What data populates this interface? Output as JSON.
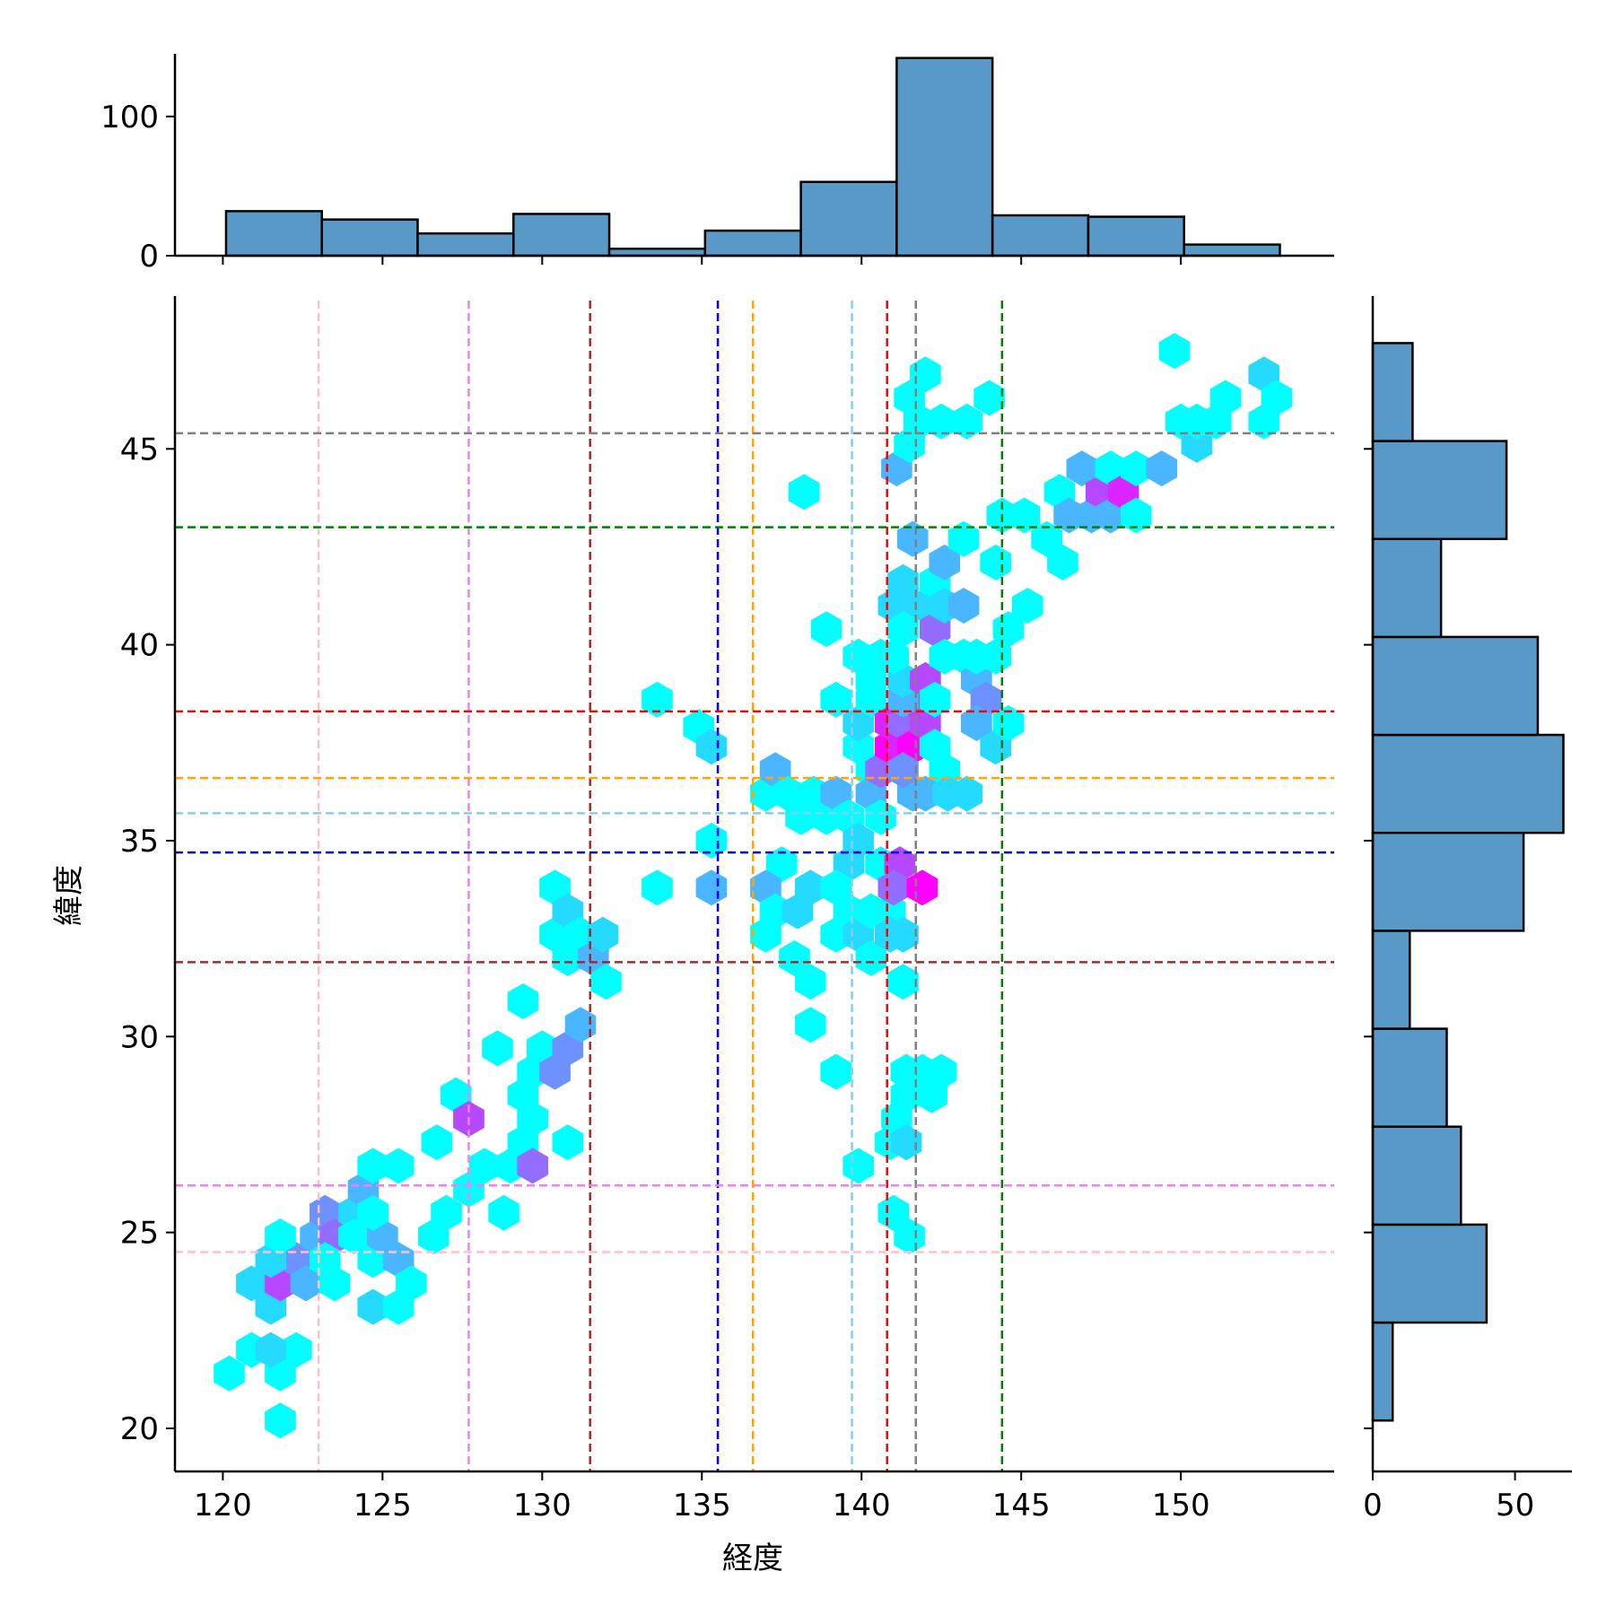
{
  "chart_data": {
    "type": "hexbin",
    "xlabel": "経度",
    "ylabel": "緯度",
    "xlim": [
      118.5,
      154.8
    ],
    "ylim": [
      18.9,
      48.9
    ],
    "xticks": [
      120,
      125,
      130,
      135,
      140,
      145,
      150
    ],
    "yticks": [
      20,
      25,
      30,
      35,
      40,
      45
    ],
    "colormap": [
      "#00ffff",
      "#ff00ff"
    ],
    "hexbins": [
      {
        "x": 120.2,
        "y": 21.4,
        "c": 1
      },
      {
        "x": 120.9,
        "y": 22.0,
        "c": 1
      },
      {
        "x": 121.8,
        "y": 21.4,
        "c": 1
      },
      {
        "x": 122.3,
        "y": 22.0,
        "c": 1
      },
      {
        "x": 121.5,
        "y": 22.0,
        "c": 2
      },
      {
        "x": 121.8,
        "y": 20.2,
        "c": 1
      },
      {
        "x": 120.9,
        "y": 23.7,
        "c": 2
      },
      {
        "x": 121.5,
        "y": 23.1,
        "c": 2
      },
      {
        "x": 121.8,
        "y": 23.7,
        "c": 6
      },
      {
        "x": 122.3,
        "y": 24.3,
        "c": 4
      },
      {
        "x": 121.5,
        "y": 24.3,
        "c": 2
      },
      {
        "x": 121.8,
        "y": 24.9,
        "c": 1
      },
      {
        "x": 122.6,
        "y": 23.7,
        "c": 3
      },
      {
        "x": 122.9,
        "y": 24.9,
        "c": 3
      },
      {
        "x": 123.2,
        "y": 25.5,
        "c": 4
      },
      {
        "x": 123.5,
        "y": 24.9,
        "c": 5
      },
      {
        "x": 123.5,
        "y": 23.7,
        "c": 1
      },
      {
        "x": 123.2,
        "y": 24.3,
        "c": 1
      },
      {
        "x": 124.1,
        "y": 25.5,
        "c": 2
      },
      {
        "x": 124.4,
        "y": 26.1,
        "c": 3
      },
      {
        "x": 124.1,
        "y": 24.9,
        "c": 1
      },
      {
        "x": 124.7,
        "y": 24.3,
        "c": 1
      },
      {
        "x": 125.0,
        "y": 24.9,
        "c": 3
      },
      {
        "x": 125.5,
        "y": 24.3,
        "c": 3
      },
      {
        "x": 124.7,
        "y": 25.5,
        "c": 1
      },
      {
        "x": 124.7,
        "y": 26.7,
        "c": 1
      },
      {
        "x": 125.5,
        "y": 26.7,
        "c": 1
      },
      {
        "x": 124.7,
        "y": 23.1,
        "c": 2
      },
      {
        "x": 125.5,
        "y": 23.1,
        "c": 1
      },
      {
        "x": 125.9,
        "y": 23.7,
        "c": 1
      },
      {
        "x": 126.6,
        "y": 24.9,
        "c": 1
      },
      {
        "x": 127.0,
        "y": 25.5,
        "c": 1
      },
      {
        "x": 126.7,
        "y": 27.3,
        "c": 1
      },
      {
        "x": 127.7,
        "y": 26.1,
        "c": 1
      },
      {
        "x": 127.3,
        "y": 28.5,
        "c": 1
      },
      {
        "x": 127.7,
        "y": 27.9,
        "c": 6
      },
      {
        "x": 128.2,
        "y": 26.7,
        "c": 1
      },
      {
        "x": 128.6,
        "y": 29.7,
        "c": 1
      },
      {
        "x": 129.0,
        "y": 26.7,
        "c": 1
      },
      {
        "x": 128.8,
        "y": 25.5,
        "c": 1
      },
      {
        "x": 129.4,
        "y": 27.3,
        "c": 1
      },
      {
        "x": 129.4,
        "y": 28.5,
        "c": 1
      },
      {
        "x": 129.7,
        "y": 26.7,
        "c": 5
      },
      {
        "x": 129.7,
        "y": 27.9,
        "c": 1
      },
      {
        "x": 129.7,
        "y": 29.1,
        "c": 1
      },
      {
        "x": 130.0,
        "y": 29.7,
        "c": 1
      },
      {
        "x": 129.4,
        "y": 30.9,
        "c": 1
      },
      {
        "x": 130.4,
        "y": 29.1,
        "c": 4
      },
      {
        "x": 130.8,
        "y": 29.7,
        "c": 4
      },
      {
        "x": 130.8,
        "y": 27.3,
        "c": 1
      },
      {
        "x": 131.2,
        "y": 30.3,
        "c": 3
      },
      {
        "x": 130.4,
        "y": 32.6,
        "c": 1
      },
      {
        "x": 130.4,
        "y": 33.8,
        "c": 1
      },
      {
        "x": 130.8,
        "y": 33.2,
        "c": 2
      },
      {
        "x": 130.8,
        "y": 32.0,
        "c": 1
      },
      {
        "x": 131.2,
        "y": 32.6,
        "c": 1
      },
      {
        "x": 131.6,
        "y": 32.0,
        "c": 3
      },
      {
        "x": 131.9,
        "y": 32.6,
        "c": 2
      },
      {
        "x": 132.0,
        "y": 31.4,
        "c": 1
      },
      {
        "x": 133.6,
        "y": 33.8,
        "c": 1
      },
      {
        "x": 133.6,
        "y": 38.6,
        "c": 1
      },
      {
        "x": 134.9,
        "y": 37.9,
        "c": 1
      },
      {
        "x": 135.3,
        "y": 37.4,
        "c": 2
      },
      {
        "x": 135.3,
        "y": 35.0,
        "c": 1
      },
      {
        "x": 135.3,
        "y": 33.8,
        "c": 3
      },
      {
        "x": 137.0,
        "y": 36.2,
        "c": 1
      },
      {
        "x": 137.3,
        "y": 36.8,
        "c": 3
      },
      {
        "x": 137.7,
        "y": 36.2,
        "c": 1
      },
      {
        "x": 138.1,
        "y": 35.6,
        "c": 1
      },
      {
        "x": 138.5,
        "y": 36.2,
        "c": 1
      },
      {
        "x": 138.9,
        "y": 35.6,
        "c": 1
      },
      {
        "x": 137.5,
        "y": 34.4,
        "c": 1
      },
      {
        "x": 137.0,
        "y": 33.8,
        "c": 3
      },
      {
        "x": 137.3,
        "y": 33.2,
        "c": 1
      },
      {
        "x": 137.0,
        "y": 32.6,
        "c": 1
      },
      {
        "x": 138.0,
        "y": 33.2,
        "c": 2
      },
      {
        "x": 138.4,
        "y": 33.8,
        "c": 2
      },
      {
        "x": 137.9,
        "y": 32.0,
        "c": 1
      },
      {
        "x": 138.4,
        "y": 31.4,
        "c": 1
      },
      {
        "x": 138.4,
        "y": 30.3,
        "c": 1
      },
      {
        "x": 138.2,
        "y": 43.9,
        "c": 1
      },
      {
        "x": 138.9,
        "y": 40.4,
        "c": 1
      },
      {
        "x": 139.2,
        "y": 38.6,
        "c": 1
      },
      {
        "x": 139.2,
        "y": 36.2,
        "c": 3
      },
      {
        "x": 139.6,
        "y": 35.6,
        "c": 1
      },
      {
        "x": 139.6,
        "y": 34.4,
        "c": 2
      },
      {
        "x": 139.9,
        "y": 35.0,
        "c": 2
      },
      {
        "x": 139.2,
        "y": 33.8,
        "c": 1
      },
      {
        "x": 139.2,
        "y": 32.6,
        "c": 1
      },
      {
        "x": 139.6,
        "y": 33.2,
        "c": 1
      },
      {
        "x": 139.9,
        "y": 32.6,
        "c": 2
      },
      {
        "x": 140.3,
        "y": 33.2,
        "c": 1
      },
      {
        "x": 140.3,
        "y": 32.0,
        "c": 1
      },
      {
        "x": 139.2,
        "y": 29.1,
        "c": 1
      },
      {
        "x": 139.9,
        "y": 26.7,
        "c": 1
      },
      {
        "x": 139.9,
        "y": 37.4,
        "c": 1
      },
      {
        "x": 139.9,
        "y": 38.0,
        "c": 2
      },
      {
        "x": 140.3,
        "y": 38.6,
        "c": 1
      },
      {
        "x": 140.3,
        "y": 39.1,
        "c": 1
      },
      {
        "x": 139.9,
        "y": 39.7,
        "c": 1
      },
      {
        "x": 140.6,
        "y": 39.7,
        "c": 1
      },
      {
        "x": 140.3,
        "y": 36.8,
        "c": 1
      },
      {
        "x": 140.3,
        "y": 36.2,
        "c": 3
      },
      {
        "x": 140.6,
        "y": 35.6,
        "c": 1
      },
      {
        "x": 140.6,
        "y": 36.8,
        "c": 5
      },
      {
        "x": 140.9,
        "y": 37.4,
        "c": 8
      },
      {
        "x": 140.9,
        "y": 38.0,
        "c": 7
      },
      {
        "x": 141.3,
        "y": 37.4,
        "c": 7
      },
      {
        "x": 141.3,
        "y": 38.0,
        "c": 5
      },
      {
        "x": 141.6,
        "y": 38.6,
        "c": 7
      },
      {
        "x": 141.6,
        "y": 37.4,
        "c": 8
      },
      {
        "x": 142.0,
        "y": 38.0,
        "c": 6
      },
      {
        "x": 141.3,
        "y": 38.6,
        "c": 3
      },
      {
        "x": 141.3,
        "y": 39.1,
        "c": 2
      },
      {
        "x": 142.0,
        "y": 39.1,
        "c": 6
      },
      {
        "x": 142.3,
        "y": 38.6,
        "c": 1
      },
      {
        "x": 142.3,
        "y": 37.4,
        "c": 1
      },
      {
        "x": 142.6,
        "y": 36.8,
        "c": 1
      },
      {
        "x": 141.6,
        "y": 36.2,
        "c": 3
      },
      {
        "x": 141.3,
        "y": 36.8,
        "c": 4
      },
      {
        "x": 142.0,
        "y": 36.2,
        "c": 3
      },
      {
        "x": 142.7,
        "y": 36.2,
        "c": 2
      },
      {
        "x": 143.3,
        "y": 36.2,
        "c": 2
      },
      {
        "x": 140.6,
        "y": 34.4,
        "c": 1
      },
      {
        "x": 140.9,
        "y": 33.2,
        "c": 1
      },
      {
        "x": 140.9,
        "y": 32.6,
        "c": 2
      },
      {
        "x": 141.3,
        "y": 32.6,
        "c": 2
      },
      {
        "x": 141.3,
        "y": 31.4,
        "c": 1
      },
      {
        "x": 141.2,
        "y": 34.4,
        "c": 6
      },
      {
        "x": 141.0,
        "y": 33.8,
        "c": 5
      },
      {
        "x": 141.9,
        "y": 33.8,
        "c": 8
      },
      {
        "x": 141.0,
        "y": 39.7,
        "c": 1
      },
      {
        "x": 141.0,
        "y": 41.0,
        "c": 2
      },
      {
        "x": 141.3,
        "y": 41.6,
        "c": 2
      },
      {
        "x": 141.6,
        "y": 41.0,
        "c": 2
      },
      {
        "x": 141.3,
        "y": 40.4,
        "c": 1
      },
      {
        "x": 141.6,
        "y": 42.7,
        "c": 3
      },
      {
        "x": 142.0,
        "y": 41.0,
        "c": 2
      },
      {
        "x": 142.3,
        "y": 41.6,
        "c": 1
      },
      {
        "x": 142.3,
        "y": 40.4,
        "c": 5
      },
      {
        "x": 142.6,
        "y": 41.0,
        "c": 2
      },
      {
        "x": 143.2,
        "y": 41.0,
        "c": 3
      },
      {
        "x": 142.6,
        "y": 39.7,
        "c": 1
      },
      {
        "x": 143.2,
        "y": 39.7,
        "c": 1
      },
      {
        "x": 143.6,
        "y": 39.1,
        "c": 3
      },
      {
        "x": 143.9,
        "y": 38.6,
        "c": 4
      },
      {
        "x": 143.6,
        "y": 38.0,
        "c": 3
      },
      {
        "x": 144.2,
        "y": 37.4,
        "c": 2
      },
      {
        "x": 144.6,
        "y": 38.0,
        "c": 1
      },
      {
        "x": 143.6,
        "y": 39.7,
        "c": 1
      },
      {
        "x": 144.2,
        "y": 39.7,
        "c": 1
      },
      {
        "x": 144.6,
        "y": 40.4,
        "c": 1
      },
      {
        "x": 145.2,
        "y": 41.0,
        "c": 1
      },
      {
        "x": 144.2,
        "y": 42.1,
        "c": 1
      },
      {
        "x": 142.6,
        "y": 42.1,
        "c": 3
      },
      {
        "x": 143.2,
        "y": 42.7,
        "c": 1
      },
      {
        "x": 141.1,
        "y": 44.5,
        "c": 3
      },
      {
        "x": 141.5,
        "y": 45.1,
        "c": 1
      },
      {
        "x": 141.5,
        "y": 46.3,
        "c": 1
      },
      {
        "x": 142.0,
        "y": 46.9,
        "c": 1
      },
      {
        "x": 141.8,
        "y": 45.7,
        "c": 1
      },
      {
        "x": 142.5,
        "y": 45.7,
        "c": 1
      },
      {
        "x": 143.3,
        "y": 45.7,
        "c": 1
      },
      {
        "x": 144.0,
        "y": 46.3,
        "c": 1
      },
      {
        "x": 144.4,
        "y": 43.3,
        "c": 1
      },
      {
        "x": 145.1,
        "y": 43.3,
        "c": 1
      },
      {
        "x": 145.8,
        "y": 42.7,
        "c": 1
      },
      {
        "x": 146.2,
        "y": 43.9,
        "c": 1
      },
      {
        "x": 146.3,
        "y": 42.1,
        "c": 1
      },
      {
        "x": 146.5,
        "y": 43.3,
        "c": 3
      },
      {
        "x": 146.9,
        "y": 44.5,
        "c": 3
      },
      {
        "x": 147.2,
        "y": 43.3,
        "c": 3
      },
      {
        "x": 147.5,
        "y": 43.9,
        "c": 6
      },
      {
        "x": 147.8,
        "y": 43.3,
        "c": 3
      },
      {
        "x": 147.8,
        "y": 44.5,
        "c": 1
      },
      {
        "x": 148.2,
        "y": 43.9,
        "c": 7
      },
      {
        "x": 148.6,
        "y": 43.3,
        "c": 1
      },
      {
        "x": 148.6,
        "y": 44.5,
        "c": 1
      },
      {
        "x": 149.4,
        "y": 44.5,
        "c": 3
      },
      {
        "x": 149.8,
        "y": 47.5,
        "c": 1
      },
      {
        "x": 150.0,
        "y": 45.7,
        "c": 1
      },
      {
        "x": 150.5,
        "y": 45.1,
        "c": 2
      },
      {
        "x": 150.5,
        "y": 45.7,
        "c": 1
      },
      {
        "x": 151.1,
        "y": 45.7,
        "c": 1
      },
      {
        "x": 151.4,
        "y": 46.3,
        "c": 1
      },
      {
        "x": 152.6,
        "y": 45.7,
        "c": 1
      },
      {
        "x": 152.6,
        "y": 46.9,
        "c": 2
      },
      {
        "x": 153.0,
        "y": 46.3,
        "c": 1
      },
      {
        "x": 141.4,
        "y": 29.1,
        "c": 1
      },
      {
        "x": 141.4,
        "y": 28.5,
        "c": 1
      },
      {
        "x": 141.1,
        "y": 27.9,
        "c": 1
      },
      {
        "x": 140.9,
        "y": 27.3,
        "c": 1
      },
      {
        "x": 141.4,
        "y": 27.3,
        "c": 2
      },
      {
        "x": 142.2,
        "y": 28.5,
        "c": 1
      },
      {
        "x": 142.5,
        "y": 29.1,
        "c": 1
      },
      {
        "x": 141.9,
        "y": 29.1,
        "c": 1
      },
      {
        "x": 141.0,
        "y": 25.5,
        "c": 1
      },
      {
        "x": 141.5,
        "y": 24.9,
        "c": 1
      }
    ],
    "vlines": [
      {
        "x": 123.0,
        "color": "#ffc0cb"
      },
      {
        "x": 127.7,
        "color": "#ee82ee"
      },
      {
        "x": 131.5,
        "color": "#a52a2a"
      },
      {
        "x": 135.5,
        "color": "#0000ff"
      },
      {
        "x": 136.6,
        "color": "#ffa500"
      },
      {
        "x": 139.7,
        "color": "#87ceeb"
      },
      {
        "x": 140.8,
        "color": "#ff0000"
      },
      {
        "x": 141.7,
        "color": "#808080"
      },
      {
        "x": 144.4,
        "color": "#008000"
      }
    ],
    "hlines": [
      {
        "y": 45.4,
        "color": "#808080"
      },
      {
        "y": 43.0,
        "color": "#008000"
      },
      {
        "y": 38.3,
        "color": "#ff0000"
      },
      {
        "y": 36.6,
        "color": "#ffa500"
      },
      {
        "y": 35.7,
        "color": "#87ceeb"
      },
      {
        "y": 34.7,
        "color": "#0000ff"
      },
      {
        "y": 31.9,
        "color": "#a52a2a"
      },
      {
        "y": 26.2,
        "color": "#ee82ee"
      },
      {
        "y": 24.5,
        "color": "#ffc0cb"
      }
    ],
    "top_hist": {
      "bar_color": "#5899c7",
      "yticks": [
        0,
        100
      ],
      "ylim": [
        0,
        145
      ],
      "bins": [
        {
          "x0": 120.1,
          "x1": 123.1,
          "count": 32
        },
        {
          "x0": 123.1,
          "x1": 126.1,
          "count": 26
        },
        {
          "x0": 126.1,
          "x1": 129.1,
          "count": 16
        },
        {
          "x0": 129.1,
          "x1": 132.1,
          "count": 30
        },
        {
          "x0": 132.1,
          "x1": 135.1,
          "count": 5
        },
        {
          "x0": 135.1,
          "x1": 138.1,
          "count": 18
        },
        {
          "x0": 138.1,
          "x1": 141.1,
          "count": 53
        },
        {
          "x0": 141.1,
          "x1": 144.1,
          "count": 142
        },
        {
          "x0": 144.1,
          "x1": 147.1,
          "count": 29
        },
        {
          "x0": 147.1,
          "x1": 150.1,
          "count": 28
        },
        {
          "x0": 150.1,
          "x1": 153.1,
          "count": 8
        }
      ]
    },
    "right_hist": {
      "bar_color": "#5899c7",
      "xticks": [
        0,
        50
      ],
      "xlim": [
        0,
        70
      ],
      "bins": [
        {
          "y0": 20.2,
          "y1": 22.7,
          "count": 7
        },
        {
          "y0": 22.7,
          "y1": 25.2,
          "count": 40
        },
        {
          "y0": 25.2,
          "y1": 27.7,
          "count": 31
        },
        {
          "y0": 27.7,
          "y1": 30.2,
          "count": 26
        },
        {
          "y0": 30.2,
          "y1": 32.7,
          "count": 13
        },
        {
          "y0": 32.7,
          "y1": 35.2,
          "count": 53
        },
        {
          "y0": 35.2,
          "y1": 37.7,
          "count": 67
        },
        {
          "y0": 37.7,
          "y1": 40.2,
          "count": 58
        },
        {
          "y0": 40.2,
          "y1": 42.7,
          "count": 24
        },
        {
          "y0": 42.7,
          "y1": 45.2,
          "count": 47
        },
        {
          "y0": 45.2,
          "y1": 47.7,
          "count": 14
        }
      ]
    }
  }
}
